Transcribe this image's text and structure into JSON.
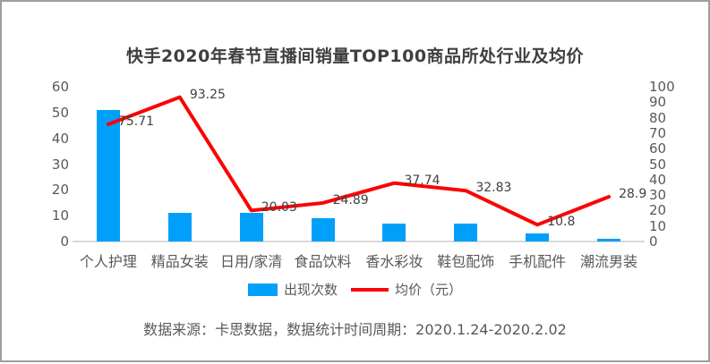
{
  "chart_data": {
    "type": "bar",
    "subtype": "combo-bar-line",
    "title": "快手2020年春节直播间销量TOP100商品所处行业及均价",
    "categories": [
      "个人护理",
      "精品女装",
      "日用/家清",
      "食品饮料",
      "香水彩妆",
      "鞋包配饰",
      "手机配件",
      "潮流男装"
    ],
    "series": [
      {
        "name": "出现次数",
        "type": "bar",
        "axis": "left",
        "color": "#00a0fa",
        "values": [
          51,
          11,
          11,
          9,
          7,
          7,
          3,
          1
        ]
      },
      {
        "name": "均价（元）",
        "type": "line",
        "axis": "right",
        "color": "#fb0404",
        "values": [
          75.71,
          93.25,
          20.03,
          24.89,
          37.74,
          32.83,
          10.8,
          28.9
        ]
      }
    ],
    "left_axis": {
      "min": 0,
      "max": 60,
      "step": 10,
      "ticks": [
        "0",
        "10",
        "20",
        "30",
        "40",
        "50",
        "60"
      ]
    },
    "right_axis": {
      "min": 0,
      "max": 100,
      "step": 10,
      "ticks": [
        "0",
        "10",
        "20",
        "30",
        "40",
        "50",
        "60",
        "70",
        "80",
        "90",
        "100"
      ]
    },
    "legend_position": "bottom",
    "grid": false
  },
  "footer": {
    "source_note": "数据来源：卡思数据，数据统计时间周期：2020.1.24-2020.2.02"
  },
  "colors": {
    "bar": "#00a0fa",
    "line": "#fb0404",
    "title_text": "#3f3f3f",
    "axis_text": "#595959",
    "label_text": "#404040",
    "baseline": "#d9d9d9",
    "border": "#9e9e9e"
  }
}
